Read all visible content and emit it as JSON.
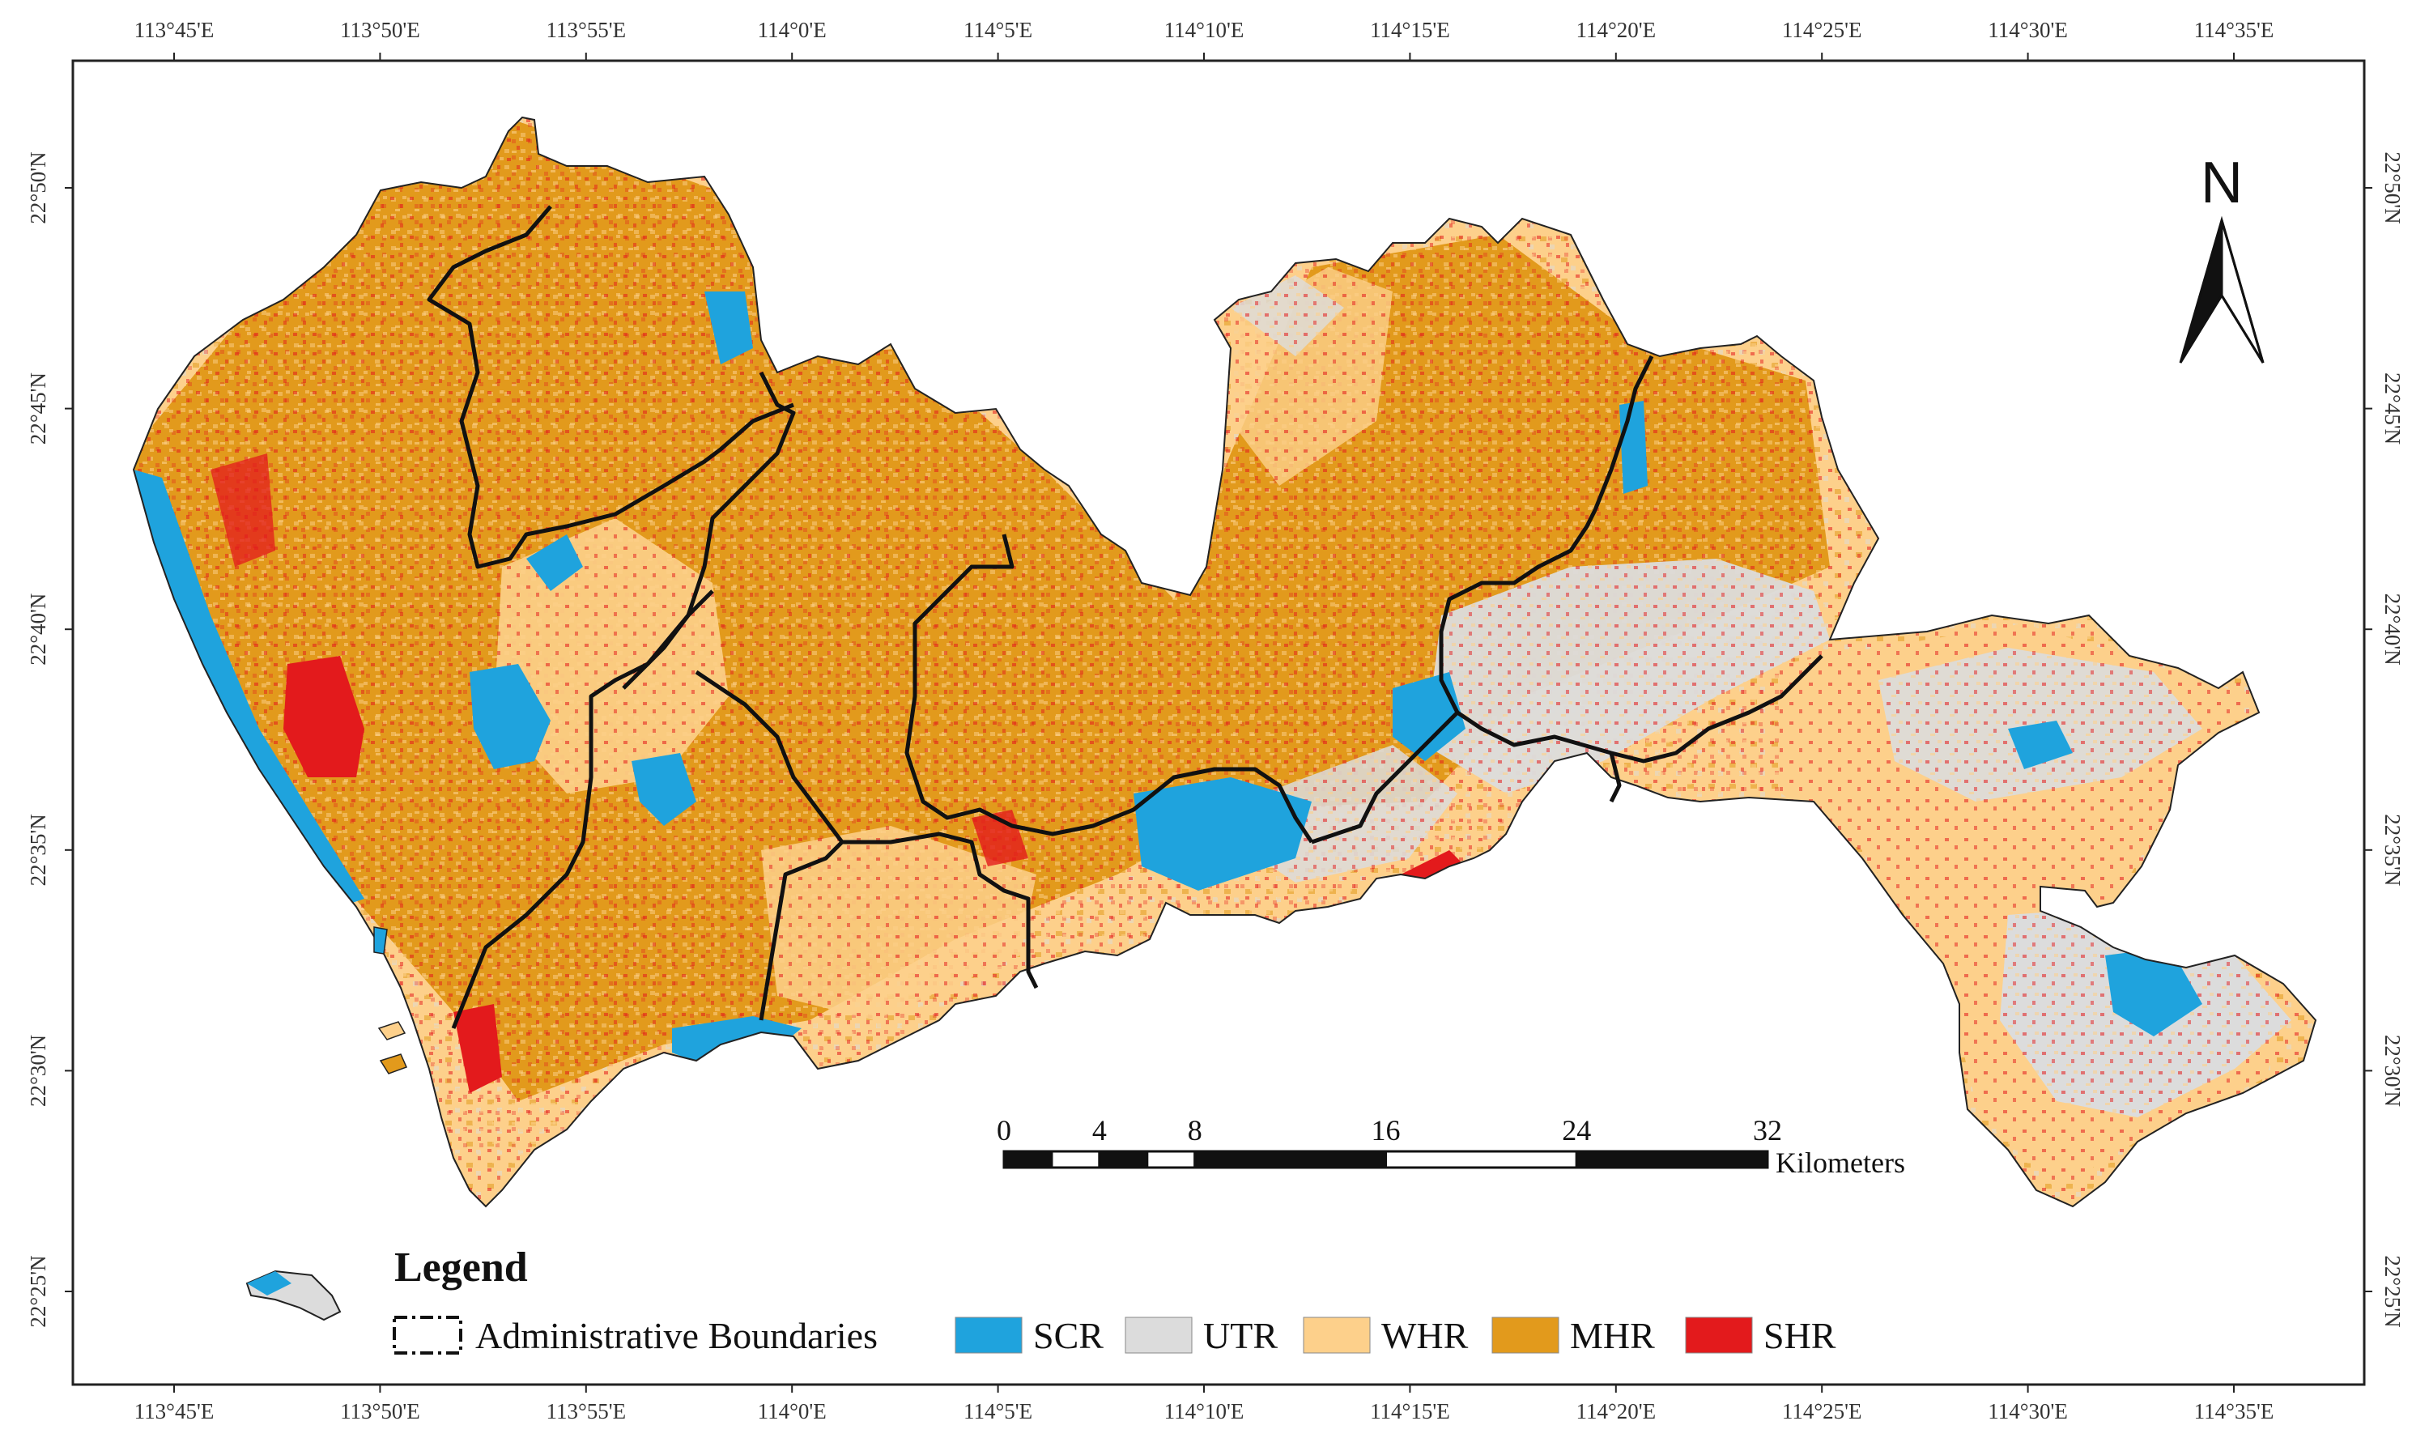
{
  "colors": {
    "SCR": "#1fa3dd",
    "UTR": "#dcdcdc",
    "WHR": "#fdd08b",
    "MHR": "#e29a1c",
    "SHR": "#e31a1c",
    "boundary": "#111111",
    "frame": "#222222"
  },
  "axes": {
    "top_labels": [
      "113°45'E",
      "113°50'E",
      "113°55'E",
      "114°0'E",
      "114°5'E",
      "114°10'E",
      "114°15'E",
      "114°20'E",
      "114°25'E",
      "114°30'E",
      "114°35'E"
    ],
    "bottom_labels": [
      "113°45'E",
      "113°50'E",
      "113°55'E",
      "114°0'E",
      "114°5'E",
      "114°10'E",
      "114°15'E",
      "114°20'E",
      "114°25'E",
      "114°30'E",
      "114°35'E"
    ],
    "left_labels": [
      "22°50'N",
      "22°45'N",
      "22°40'N",
      "22°35'N",
      "22°30'N",
      "22°25'N"
    ],
    "right_labels": [
      "22°50'N",
      "22°45'N",
      "22°40'N",
      "22°35'N",
      "22°30'N",
      "22°25'N"
    ]
  },
  "north_arrow": {
    "label": "N",
    "icon": "north-arrow-icon"
  },
  "scale_bar": {
    "tick_labels": [
      "0",
      "4",
      "8",
      "16",
      "24",
      "32"
    ],
    "tick_values": [
      0,
      4,
      8,
      16,
      24,
      32
    ],
    "unit": "Kilometers"
  },
  "legend": {
    "title": "Legend",
    "boundary_label": "Administrative Boundaries",
    "classes": [
      {
        "code": "SCR",
        "label": "SCR"
      },
      {
        "code": "UTR",
        "label": "UTR"
      },
      {
        "code": "WHR",
        "label": "WHR"
      },
      {
        "code": "MHR",
        "label": "MHR"
      },
      {
        "code": "SHR",
        "label": "SHR"
      }
    ]
  }
}
